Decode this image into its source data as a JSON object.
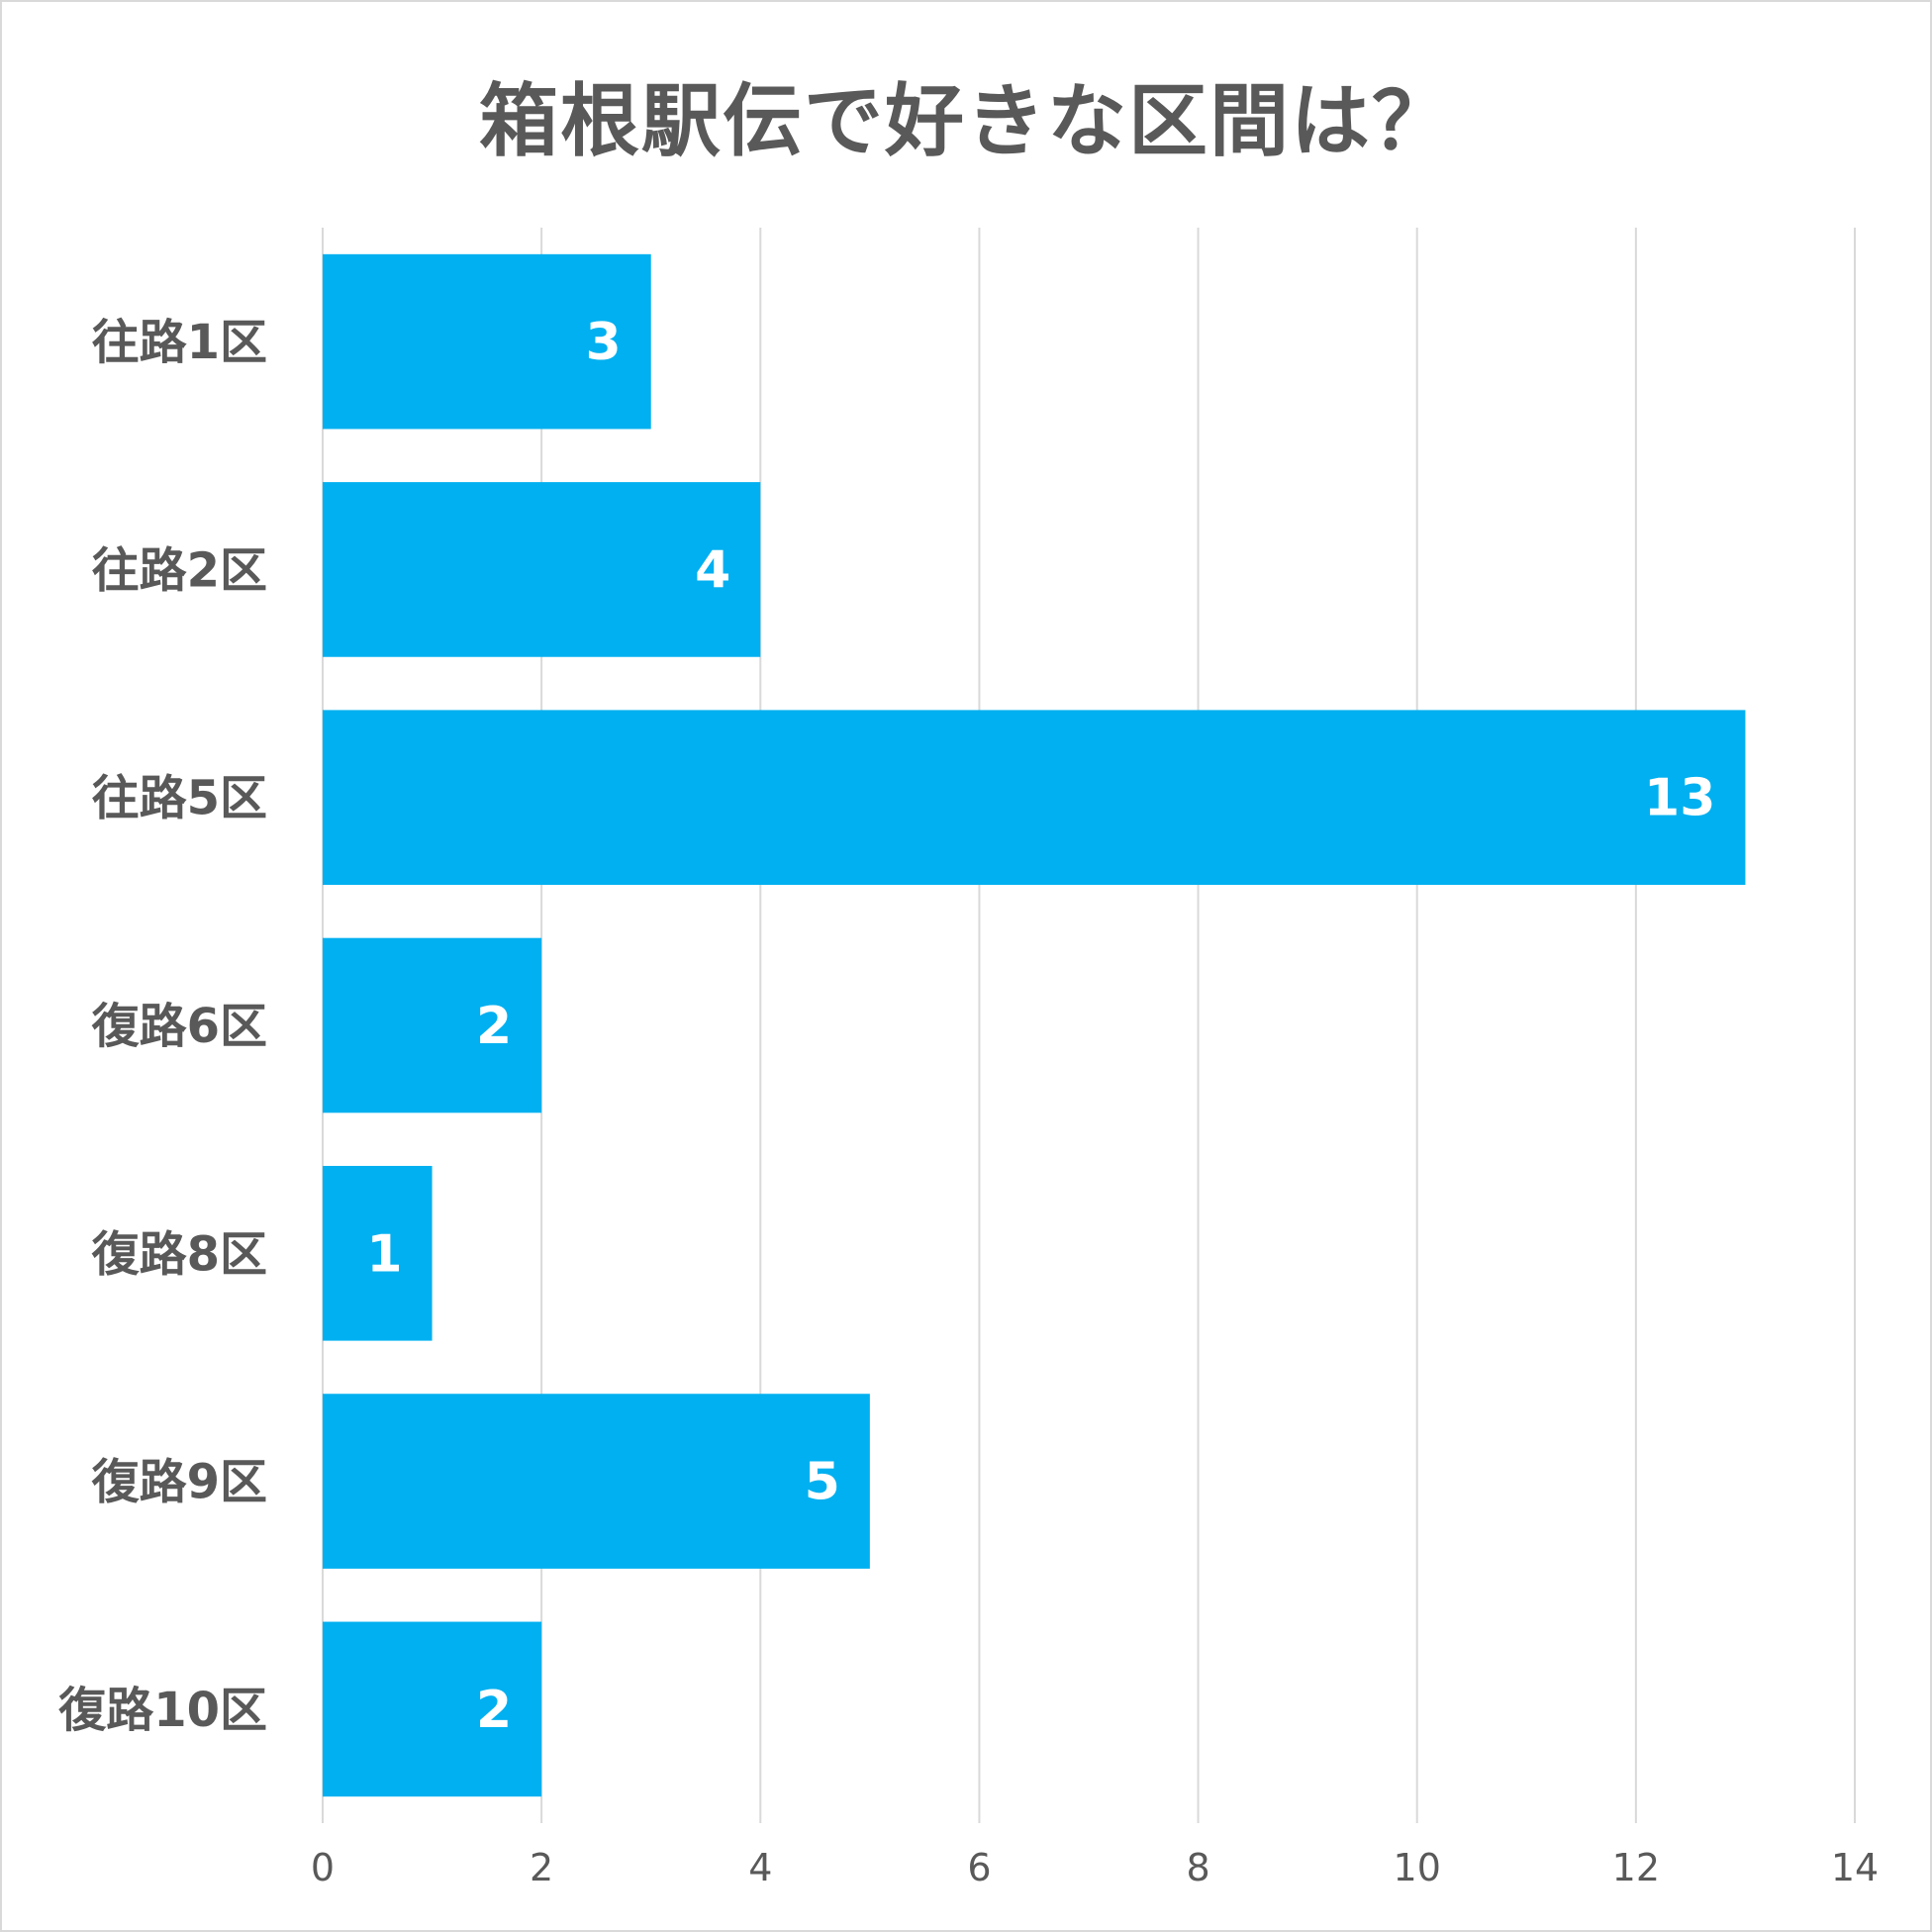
{
  "chart_data": {
    "type": "bar",
    "orientation": "horizontal",
    "title": "箱根駅伝で好きな区間は？",
    "xlabel": "",
    "ylabel": "",
    "categories": [
      "往路1区",
      "往路2区",
      "往路5区",
      "復路6区",
      "復路8区",
      "復路9区",
      "復路10区"
    ],
    "values": [
      3,
      4,
      13,
      2,
      1,
      5,
      2
    ],
    "xlim": [
      0,
      14
    ],
    "x_ticks": [
      0,
      2,
      4,
      6,
      8,
      10,
      12,
      14
    ],
    "grid": "vertical",
    "legend": "none",
    "data_labels": "inside-end",
    "bar_color": "#00b0f0"
  }
}
